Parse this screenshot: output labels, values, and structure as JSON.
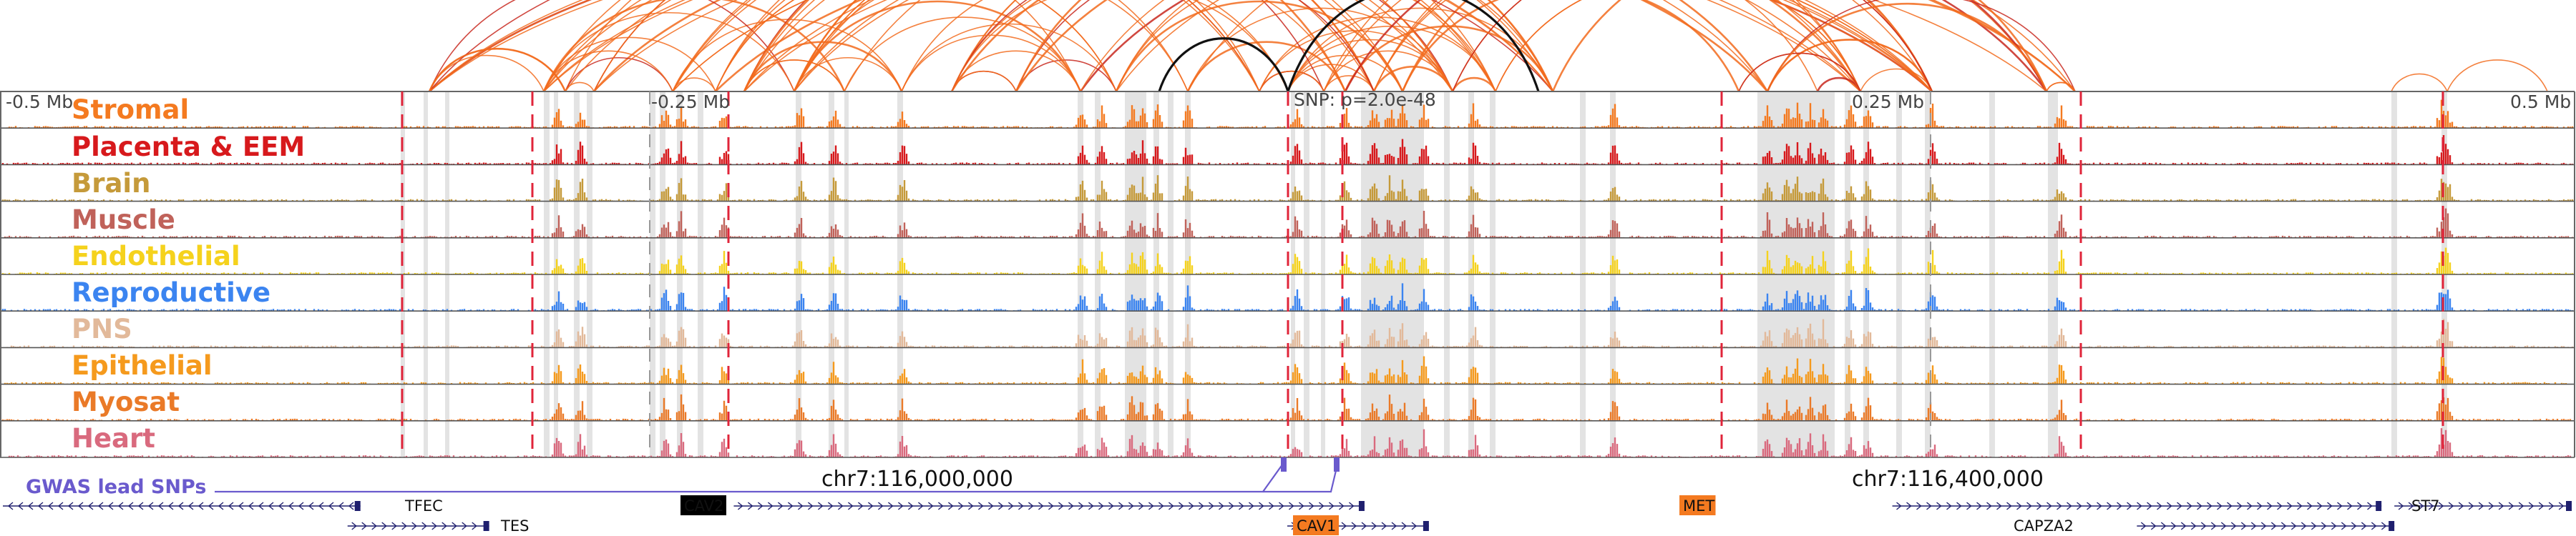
{
  "axis": {
    "ticks": [
      {
        "label": "-0.5 Mb",
        "pos": -0.5
      },
      {
        "label": "-0.25 Mb",
        "pos": -0.25
      },
      {
        "label": "0.25 Mb",
        "pos": 0.25
      },
      {
        "label": "0.5 Mb",
        "pos": 0.5
      }
    ],
    "snp_label": "SNP: p=2.0e-48"
  },
  "tracks": [
    {
      "label": "Stromal",
      "color": "#f47a20"
    },
    {
      "label": "Placenta & EEM",
      "color": "#d7191c"
    },
    {
      "label": "Brain",
      "color": "#c59a3a"
    },
    {
      "label": "Muscle",
      "color": "#c0625a"
    },
    {
      "label": "Endothelial",
      "color": "#f5d21d"
    },
    {
      "label": "Reproductive",
      "color": "#3b84f0"
    },
    {
      "label": "PNS",
      "color": "#e2b99a"
    },
    {
      "label": "Epithelial",
      "color": "#f59a1d"
    },
    {
      "label": "Myosat",
      "color": "#ea7a28"
    },
    {
      "label": "Heart",
      "color": "#d96a7e"
    }
  ],
  "gwas": {
    "label": "GWAS lead SNPs",
    "color": "#6a5acd"
  },
  "coordinates": [
    {
      "label": "chr7:116,000,000",
      "pos": -0.05
    },
    {
      "label": "chr7:116,400,000",
      "pos": 0.35
    }
  ],
  "genes": [
    {
      "name": "TFEC",
      "start": -0.5,
      "end": -0.36,
      "strand": "-",
      "row": 0,
      "label_style": "plain"
    },
    {
      "name": "CAV2",
      "start": -0.215,
      "end": 0.03,
      "strand": "+",
      "row": 0,
      "label_style": "black-box"
    },
    {
      "name": "MET",
      "start": 0.235,
      "end": 0.425,
      "strand": "+",
      "row": 0,
      "label_style": "orange-box"
    },
    {
      "name": "ST7",
      "start": 0.43,
      "end": 0.5,
      "strand": "+",
      "row": 0,
      "label_style": "plain"
    },
    {
      "name": "TES",
      "start": -0.365,
      "end": -0.31,
      "strand": "+",
      "row": 1,
      "label_style": "plain"
    },
    {
      "name": "CAV1",
      "start": 0.0,
      "end": 0.055,
      "strand": "+",
      "row": 1,
      "label_style": "orange-box"
    },
    {
      "name": "CAPZA2",
      "start": 0.33,
      "end": 0.43,
      "strand": "+",
      "row": 1,
      "label_style": "plain"
    }
  ],
  "colors": {
    "loop": "#f26b1d",
    "loop_strong": "#c8281e",
    "loop_black": "#111111",
    "boundary_dash": "#e0243a",
    "highlight_band": "#e3e3e3"
  }
}
